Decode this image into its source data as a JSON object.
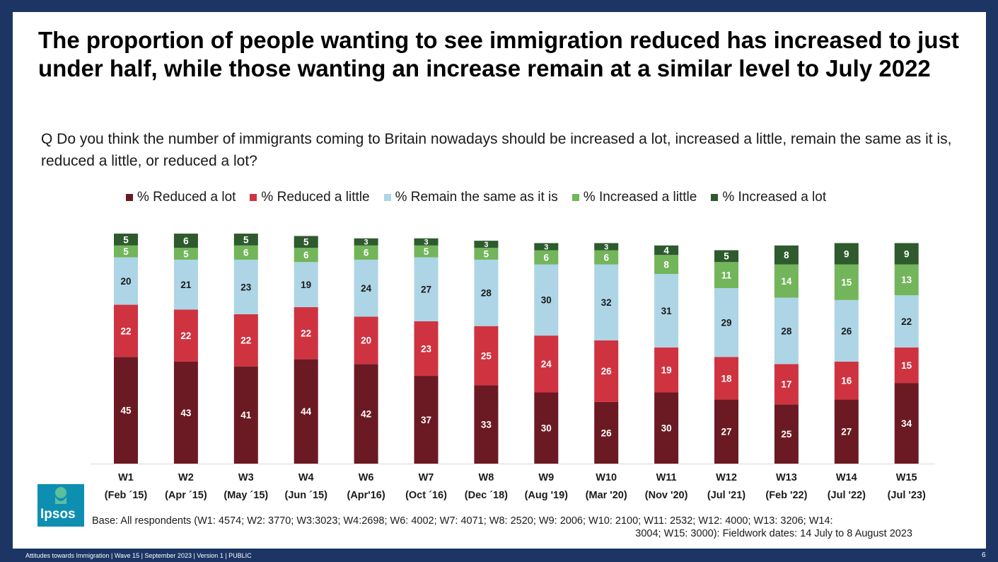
{
  "title": "The proportion of people wanting to see immigration reduced has increased to just under half, while those wanting an increase remain at a similar level to July 2022",
  "question": "Q Do you think the number of immigrants coming to Britain nowadays should be increased a lot, increased a little, remain the same as it is, reduced a little, or reduced a lot?",
  "base_line1": "Base: All respondents (W1: 4574; W2: 3770; W3:3023; W4:2698; W6: 4002; W7: 4071; W8: 2520; W9: 2006; W10: 2100; W11: 2532; W12: 4000; W13: 3206; W14:",
  "base_line2": "3004; W15: 3000): Fieldwork dates: 14 July to 8 August 2023",
  "footer": "Attitudes towards Immigration | Wave 15 | September 2023 | Version 1 | PUBLIC",
  "page_number": "6",
  "logo_text": "Ipsos",
  "colors": {
    "background": "#1c3564",
    "reduced_lot": "#6b1a23",
    "reduced_little": "#cf3340",
    "remain_same": "#add5e6",
    "increased_little": "#72b55a",
    "increased_lot": "#2e5a2e",
    "logo": "#0e8fb1"
  },
  "chart_data": {
    "type": "bar",
    "stacked": true,
    "title": "",
    "xlabel": "",
    "ylabel": "",
    "ylim": [
      0,
      100
    ],
    "categories": [
      "W1",
      "W2",
      "W3",
      "W4",
      "W6",
      "W7",
      "W8",
      "W9",
      "W10",
      "W11",
      "W12",
      "W13",
      "W14",
      "W15"
    ],
    "category_dates": [
      "(Feb ´15)",
      "(Apr ´15)",
      "(May ´15)",
      "(Jun ´15)",
      "(Apr'16)",
      "(Oct ´16)",
      "(Dec ´18)",
      "(Aug '19)",
      "(Mar '20)",
      "(Nov '20)",
      "(Jul '21)",
      "(Feb '22)",
      "(Jul '22)",
      "(Jul '23)"
    ],
    "series": [
      {
        "name": "% Reduced a lot",
        "color": "#6b1a23",
        "values": [
          45,
          43,
          41,
          44,
          42,
          37,
          33,
          30,
          26,
          30,
          27,
          25,
          27,
          34
        ]
      },
      {
        "name": "% Reduced a little",
        "color": "#cf3340",
        "values": [
          22,
          22,
          22,
          22,
          20,
          23,
          25,
          24,
          26,
          19,
          18,
          17,
          16,
          15
        ]
      },
      {
        "name": "% Remain the same as it is",
        "color": "#add5e6",
        "values": [
          20,
          21,
          23,
          19,
          24,
          27,
          28,
          30,
          32,
          31,
          29,
          28,
          26,
          22
        ]
      },
      {
        "name": "% Increased a little",
        "color": "#72b55a",
        "values": [
          5,
          5,
          6,
          6,
          6,
          5,
          5,
          6,
          6,
          8,
          11,
          14,
          15,
          13
        ]
      },
      {
        "name": "% Increased a lot",
        "color": "#2e5a2e",
        "values": [
          5,
          6,
          5,
          5,
          3,
          3,
          3,
          3,
          3,
          4,
          5,
          8,
          9,
          9
        ]
      }
    ]
  }
}
